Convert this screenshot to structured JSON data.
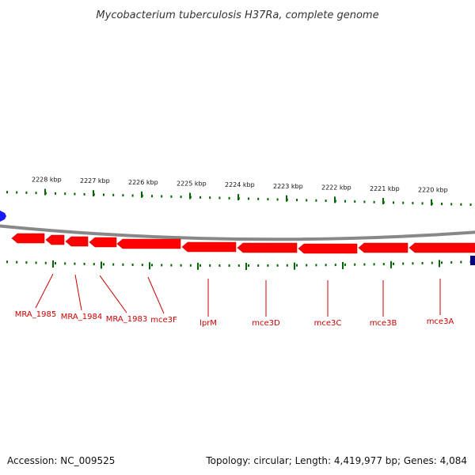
{
  "title": "Mycobacterium tuberculosis H37Ra, complete genome",
  "footer": {
    "accession": "Accession: NC_009525",
    "summary": "Topology: circular; Length: 4,419,977 bp; Genes: 4,084"
  },
  "colors": {
    "gene_forward": "#ff0000",
    "gene_label": "#cc0000",
    "tick": "#006600",
    "backbone": "#888888",
    "marker_left": "#1a1aff",
    "marker_right": "#000080"
  },
  "scale": {
    "unit": "kbp",
    "ticks": [
      {
        "kbp": 2228,
        "label": "2228 kbp"
      },
      {
        "kbp": 2227,
        "label": "2227 kbp"
      },
      {
        "kbp": 2226,
        "label": "2226 kbp"
      },
      {
        "kbp": 2225,
        "label": "2225 kbp"
      },
      {
        "kbp": 2224,
        "label": "2224 kbp"
      },
      {
        "kbp": 2223,
        "label": "2223 kbp"
      },
      {
        "kbp": 2222,
        "label": "2222 kbp"
      },
      {
        "kbp": 2221,
        "label": "2221 kbp"
      },
      {
        "kbp": 2220,
        "label": "2220 kbp"
      }
    ]
  },
  "genes": [
    {
      "name": "MRA_1985",
      "strand": "-"
    },
    {
      "name": "MRA_1984",
      "strand": "-"
    },
    {
      "name": "MRA_1983",
      "strand": "-"
    },
    {
      "name": "mce3F",
      "strand": "-"
    },
    {
      "name": "lprM",
      "strand": "-"
    },
    {
      "name": "mce3D",
      "strand": "-"
    },
    {
      "name": "mce3C",
      "strand": "-"
    },
    {
      "name": "mce3B",
      "strand": "-"
    },
    {
      "name": "mce3A",
      "strand": "-"
    }
  ]
}
